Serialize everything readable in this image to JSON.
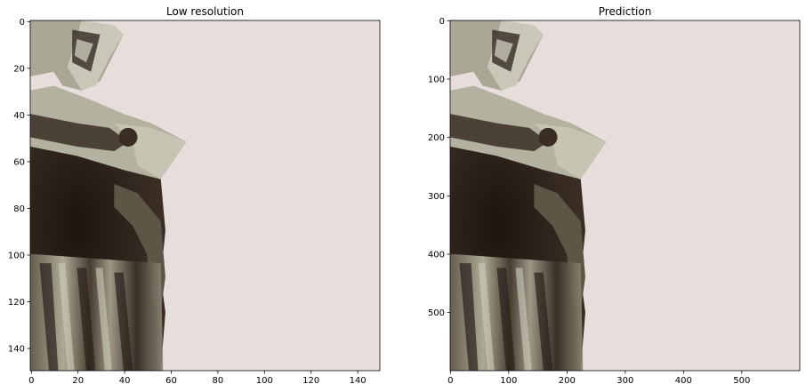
{
  "panels": [
    {
      "title": "Low resolution",
      "x_ticks": [
        "0",
        "20",
        "40",
        "60",
        "80",
        "100",
        "120",
        "140"
      ],
      "y_ticks": [
        "0",
        "20",
        "40",
        "60",
        "80",
        "100",
        "120",
        "140"
      ]
    },
    {
      "title": "Prediction",
      "x_ticks": [
        "0",
        "100",
        "200",
        "300",
        "400",
        "500"
      ],
      "y_ticks": [
        "0",
        "100",
        "200",
        "300",
        "400",
        "500"
      ]
    }
  ],
  "colors": {
    "background": "#e7dedb",
    "statue_light": "#b8b7a7",
    "statue_mid": "#8c8877",
    "statue_dark": "#2b1f18"
  }
}
